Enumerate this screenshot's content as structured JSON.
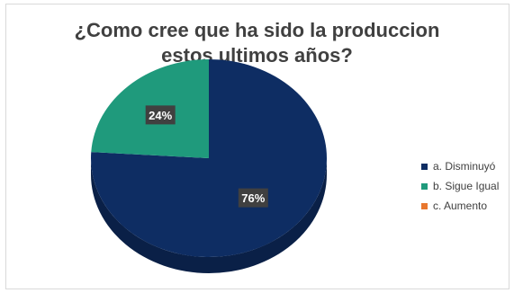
{
  "chart_data": {
    "type": "pie",
    "title_lines": [
      "¿Como cree que ha sido la produccion",
      "estos ultimos años?"
    ],
    "categories": [
      "a. Disminuyó",
      "b. Sigue Igual",
      "c. Aumento"
    ],
    "values": [
      76,
      24,
      0
    ],
    "data_labels": [
      "76%",
      "24%",
      ""
    ],
    "colors": [
      "#0e2d63",
      "#1f9a7c",
      "#e8772e"
    ],
    "legend_position": "right",
    "style": "3d-pie"
  }
}
